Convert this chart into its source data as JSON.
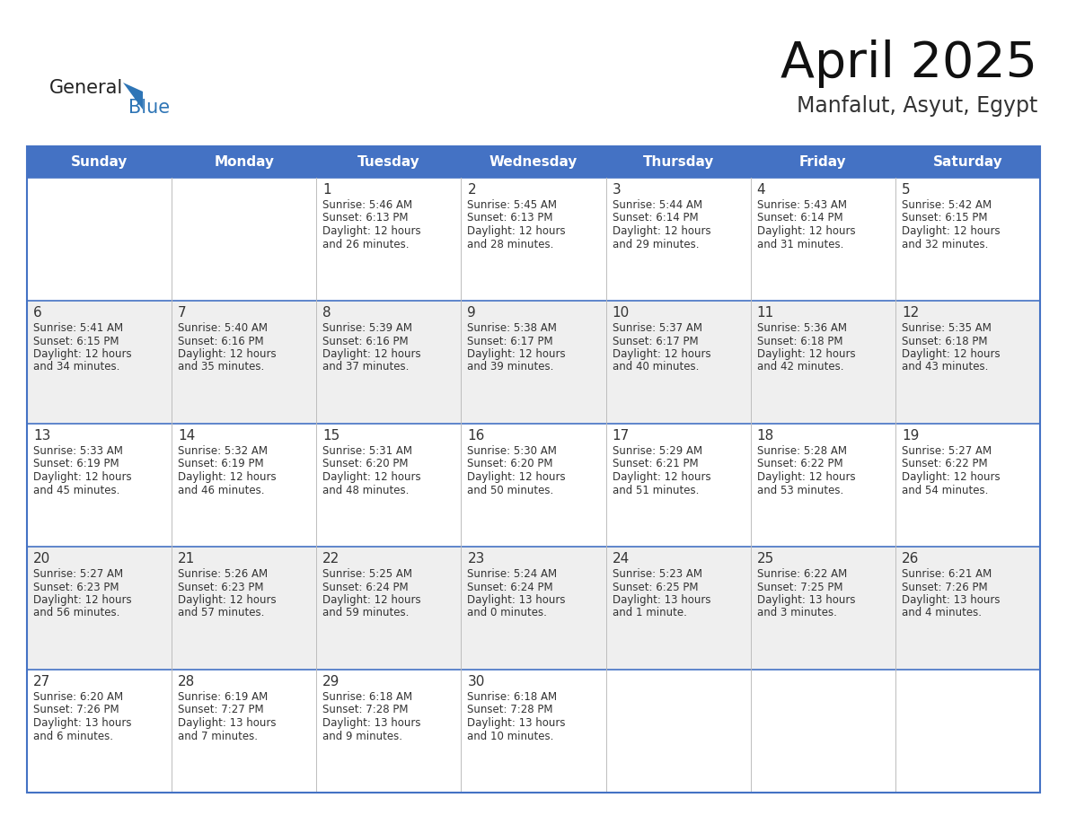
{
  "title": "April 2025",
  "subtitle": "Manfalut, Asyut, Egypt",
  "days_of_week": [
    "Sunday",
    "Monday",
    "Tuesday",
    "Wednesday",
    "Thursday",
    "Friday",
    "Saturday"
  ],
  "header_bg": "#4472C4",
  "header_text": "#FFFFFF",
  "cell_bg_white": "#FFFFFF",
  "cell_bg_gray": "#EFEFEF",
  "border_color": "#4472C4",
  "row_line_color": "#4472C4",
  "text_color": "#333333",
  "day_num_color": "#333333",
  "logo_general_color": "#222222",
  "logo_blue_color": "#2E75B6",
  "calendar_data": [
    [
      {
        "day": "",
        "sunrise": "",
        "sunset": "",
        "daylight": ""
      },
      {
        "day": "",
        "sunrise": "",
        "sunset": "",
        "daylight": ""
      },
      {
        "day": "1",
        "sunrise": "5:46 AM",
        "sunset": "6:13 PM",
        "daylight": "12 hours and 26 minutes."
      },
      {
        "day": "2",
        "sunrise": "5:45 AM",
        "sunset": "6:13 PM",
        "daylight": "12 hours and 28 minutes."
      },
      {
        "day": "3",
        "sunrise": "5:44 AM",
        "sunset": "6:14 PM",
        "daylight": "12 hours and 29 minutes."
      },
      {
        "day": "4",
        "sunrise": "5:43 AM",
        "sunset": "6:14 PM",
        "daylight": "12 hours and 31 minutes."
      },
      {
        "day": "5",
        "sunrise": "5:42 AM",
        "sunset": "6:15 PM",
        "daylight": "12 hours and 32 minutes."
      }
    ],
    [
      {
        "day": "6",
        "sunrise": "5:41 AM",
        "sunset": "6:15 PM",
        "daylight": "12 hours and 34 minutes."
      },
      {
        "day": "7",
        "sunrise": "5:40 AM",
        "sunset": "6:16 PM",
        "daylight": "12 hours and 35 minutes."
      },
      {
        "day": "8",
        "sunrise": "5:39 AM",
        "sunset": "6:16 PM",
        "daylight": "12 hours and 37 minutes."
      },
      {
        "day": "9",
        "sunrise": "5:38 AM",
        "sunset": "6:17 PM",
        "daylight": "12 hours and 39 minutes."
      },
      {
        "day": "10",
        "sunrise": "5:37 AM",
        "sunset": "6:17 PM",
        "daylight": "12 hours and 40 minutes."
      },
      {
        "day": "11",
        "sunrise": "5:36 AM",
        "sunset": "6:18 PM",
        "daylight": "12 hours and 42 minutes."
      },
      {
        "day": "12",
        "sunrise": "5:35 AM",
        "sunset": "6:18 PM",
        "daylight": "12 hours and 43 minutes."
      }
    ],
    [
      {
        "day": "13",
        "sunrise": "5:33 AM",
        "sunset": "6:19 PM",
        "daylight": "12 hours and 45 minutes."
      },
      {
        "day": "14",
        "sunrise": "5:32 AM",
        "sunset": "6:19 PM",
        "daylight": "12 hours and 46 minutes."
      },
      {
        "day": "15",
        "sunrise": "5:31 AM",
        "sunset": "6:20 PM",
        "daylight": "12 hours and 48 minutes."
      },
      {
        "day": "16",
        "sunrise": "5:30 AM",
        "sunset": "6:20 PM",
        "daylight": "12 hours and 50 minutes."
      },
      {
        "day": "17",
        "sunrise": "5:29 AM",
        "sunset": "6:21 PM",
        "daylight": "12 hours and 51 minutes."
      },
      {
        "day": "18",
        "sunrise": "5:28 AM",
        "sunset": "6:22 PM",
        "daylight": "12 hours and 53 minutes."
      },
      {
        "day": "19",
        "sunrise": "5:27 AM",
        "sunset": "6:22 PM",
        "daylight": "12 hours and 54 minutes."
      }
    ],
    [
      {
        "day": "20",
        "sunrise": "5:27 AM",
        "sunset": "6:23 PM",
        "daylight": "12 hours and 56 minutes."
      },
      {
        "day": "21",
        "sunrise": "5:26 AM",
        "sunset": "6:23 PM",
        "daylight": "12 hours and 57 minutes."
      },
      {
        "day": "22",
        "sunrise": "5:25 AM",
        "sunset": "6:24 PM",
        "daylight": "12 hours and 59 minutes."
      },
      {
        "day": "23",
        "sunrise": "5:24 AM",
        "sunset": "6:24 PM",
        "daylight": "13 hours and 0 minutes."
      },
      {
        "day": "24",
        "sunrise": "5:23 AM",
        "sunset": "6:25 PM",
        "daylight": "13 hours and 1 minute."
      },
      {
        "day": "25",
        "sunrise": "6:22 AM",
        "sunset": "7:25 PM",
        "daylight": "13 hours and 3 minutes."
      },
      {
        "day": "26",
        "sunrise": "6:21 AM",
        "sunset": "7:26 PM",
        "daylight": "13 hours and 4 minutes."
      }
    ],
    [
      {
        "day": "27",
        "sunrise": "6:20 AM",
        "sunset": "7:26 PM",
        "daylight": "13 hours and 6 minutes."
      },
      {
        "day": "28",
        "sunrise": "6:19 AM",
        "sunset": "7:27 PM",
        "daylight": "13 hours and 7 minutes."
      },
      {
        "day": "29",
        "sunrise": "6:18 AM",
        "sunset": "7:28 PM",
        "daylight": "13 hours and 9 minutes."
      },
      {
        "day": "30",
        "sunrise": "6:18 AM",
        "sunset": "7:28 PM",
        "daylight": "13 hours and 10 minutes."
      },
      {
        "day": "",
        "sunrise": "",
        "sunset": "",
        "daylight": ""
      },
      {
        "day": "",
        "sunrise": "",
        "sunset": "",
        "daylight": ""
      },
      {
        "day": "",
        "sunrise": "",
        "sunset": "",
        "daylight": ""
      }
    ]
  ]
}
